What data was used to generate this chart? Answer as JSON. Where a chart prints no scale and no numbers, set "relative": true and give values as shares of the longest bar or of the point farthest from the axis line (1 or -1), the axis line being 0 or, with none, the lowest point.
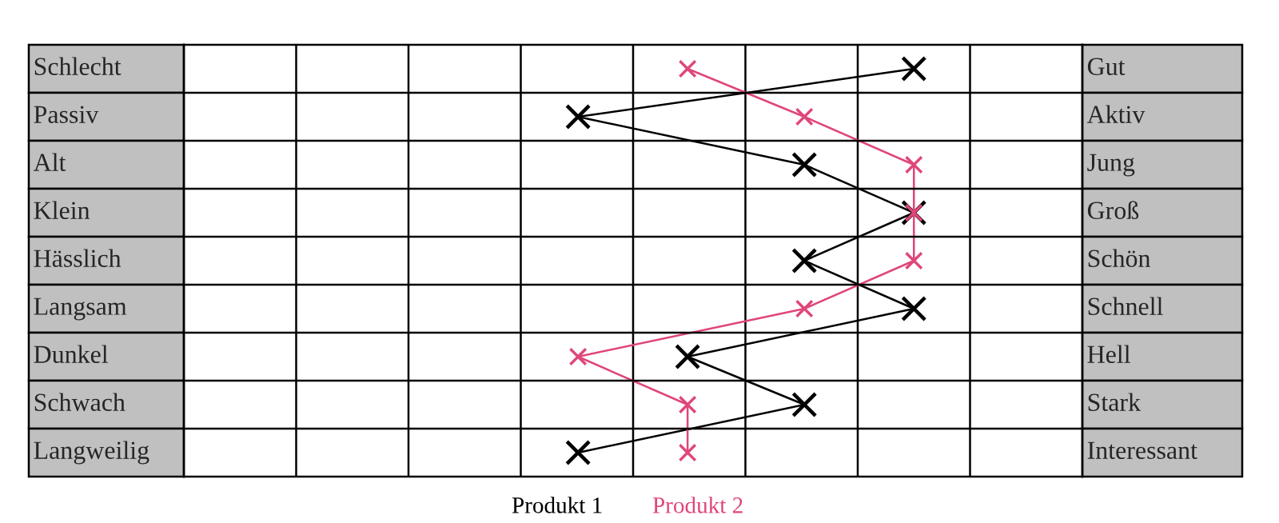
{
  "chart_data": {
    "type": "line",
    "orientation": "horizontal",
    "categories": [
      "Schlecht",
      "Passiv",
      "Alt",
      "Klein",
      "Hässlich",
      "Langsam",
      "Dunkel",
      "Schwach",
      "Langweilig"
    ],
    "y2_categories": [
      "Gut",
      "Aktiv",
      "Jung",
      "Groß",
      "Schön",
      "Schnell",
      "Hell",
      "Stark",
      "Interessant"
    ],
    "series": [
      {
        "name": "Produkt 1",
        "color": "#000000",
        "values": [
          1,
          0.54,
          0.85,
          1,
          0.85,
          1,
          0.69,
          0.85,
          0.54
        ]
      },
      {
        "name": "Produkt 2",
        "color": "#e0457b",
        "values": [
          0.69,
          0.85,
          1,
          1,
          1,
          0.85,
          0.54,
          0.69,
          0.69
        ]
      }
    ],
    "relative": true,
    "grid": "x",
    "marker": "cross",
    "line_style": "solid",
    "legend": "bottom"
  }
}
